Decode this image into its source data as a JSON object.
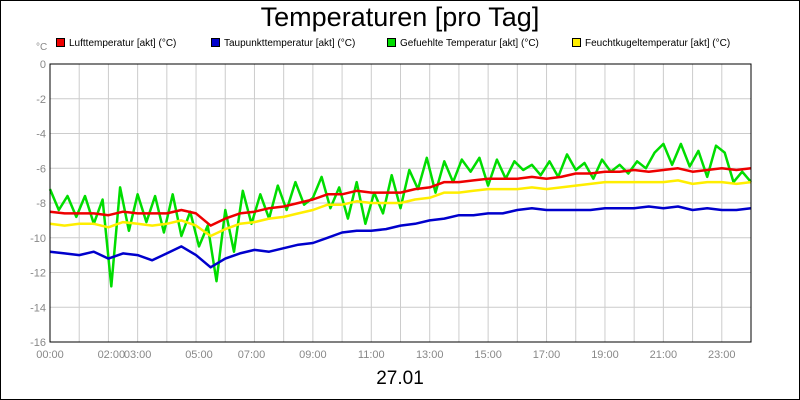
{
  "page": {
    "title": "Temperaturen [pro Tag]",
    "date": "27.01"
  },
  "chart_data": {
    "type": "line",
    "title": "Temperaturen [pro Tag]",
    "xlabel": "27.01",
    "ylabel": "°C",
    "ylim": [
      -16,
      0
    ],
    "xlim": [
      0,
      24
    ],
    "yticks": [
      0,
      -2,
      -4,
      -6,
      -8,
      -10,
      -12,
      -14,
      -16
    ],
    "xticks": [
      {
        "h": 0,
        "label": "00:00"
      },
      {
        "h": 2.1,
        "label": "02:00"
      },
      {
        "h": 3.0,
        "label": "03:00"
      },
      {
        "h": 5.1,
        "label": "05:00"
      },
      {
        "h": 6.9,
        "label": "07:00"
      },
      {
        "h": 9.0,
        "label": "09:00"
      },
      {
        "h": 11.0,
        "label": "11:00"
      },
      {
        "h": 13.0,
        "label": "13:00"
      },
      {
        "h": 15.0,
        "label": "15:00"
      },
      {
        "h": 17.0,
        "label": "17:00"
      },
      {
        "h": 19.0,
        "label": "19:00"
      },
      {
        "h": 21.0,
        "label": "21:00"
      },
      {
        "h": 23.0,
        "label": "23:00"
      }
    ],
    "grid": true,
    "series": [
      {
        "name": "Lufttemperatur [akt] (°C)",
        "color": "#ee0000",
        "x": [
          0,
          0.5,
          1,
          1.5,
          2,
          2.5,
          3,
          3.5,
          4,
          4.5,
          5,
          5.5,
          6,
          6.5,
          7,
          7.5,
          8,
          8.5,
          9,
          9.5,
          10,
          10.5,
          11,
          11.5,
          12,
          12.5,
          13,
          13.5,
          14,
          14.5,
          15,
          15.5,
          16,
          16.5,
          17,
          17.5,
          18,
          18.5,
          19,
          19.5,
          20,
          20.5,
          21,
          21.5,
          22,
          22.5,
          23,
          23.5,
          24
        ],
        "values": [
          -8.5,
          -8.6,
          -8.6,
          -8.6,
          -8.7,
          -8.5,
          -8.6,
          -8.6,
          -8.6,
          -8.4,
          -8.6,
          -9.3,
          -8.9,
          -8.6,
          -8.5,
          -8.3,
          -8.2,
          -8,
          -7.8,
          -7.5,
          -7.5,
          -7.3,
          -7.4,
          -7.4,
          -7.4,
          -7.2,
          -7.1,
          -6.8,
          -6.8,
          -6.7,
          -6.6,
          -6.6,
          -6.6,
          -6.5,
          -6.6,
          -6.5,
          -6.3,
          -6.3,
          -6.2,
          -6.2,
          -6.1,
          -6.2,
          -6.1,
          -6,
          -6.2,
          -6.1,
          -6,
          -6.1,
          -6
        ]
      },
      {
        "name": "Taupunkttemperatur [akt] (°C)",
        "color": "#0000cc",
        "x": [
          0,
          0.5,
          1,
          1.5,
          2,
          2.5,
          3,
          3.5,
          4,
          4.5,
          5,
          5.5,
          6,
          6.5,
          7,
          7.5,
          8,
          8.5,
          9,
          9.5,
          10,
          10.5,
          11,
          11.5,
          12,
          12.5,
          13,
          13.5,
          14,
          14.5,
          15,
          15.5,
          16,
          16.5,
          17,
          17.5,
          18,
          18.5,
          19,
          19.5,
          20,
          20.5,
          21,
          21.5,
          22,
          22.5,
          23,
          23.5,
          24
        ],
        "values": [
          -10.8,
          -10.9,
          -11,
          -10.8,
          -11.2,
          -10.9,
          -11,
          -11.3,
          -10.9,
          -10.5,
          -11,
          -11.7,
          -11.2,
          -10.9,
          -10.7,
          -10.8,
          -10.6,
          -10.4,
          -10.3,
          -10,
          -9.7,
          -9.6,
          -9.6,
          -9.5,
          -9.3,
          -9.2,
          -9,
          -8.9,
          -8.7,
          -8.7,
          -8.6,
          -8.6,
          -8.4,
          -8.3,
          -8.4,
          -8.4,
          -8.4,
          -8.4,
          -8.3,
          -8.3,
          -8.3,
          -8.2,
          -8.3,
          -8.2,
          -8.4,
          -8.3,
          -8.4,
          -8.4,
          -8.3
        ]
      },
      {
        "name": "Gefuehlte Temperatur [akt] (°C)",
        "color": "#00dd00",
        "x": [
          0,
          0.3,
          0.6,
          0.9,
          1.2,
          1.5,
          1.8,
          2.1,
          2.4,
          2.7,
          3,
          3.3,
          3.6,
          3.9,
          4.2,
          4.5,
          4.8,
          5.1,
          5.4,
          5.7,
          6,
          6.3,
          6.6,
          6.9,
          7.2,
          7.5,
          7.8,
          8.1,
          8.4,
          8.7,
          9,
          9.3,
          9.6,
          9.9,
          10.2,
          10.5,
          10.8,
          11.1,
          11.4,
          11.7,
          12,
          12.3,
          12.6,
          12.9,
          13.2,
          13.5,
          13.8,
          14.1,
          14.4,
          14.7,
          15,
          15.3,
          15.6,
          15.9,
          16.2,
          16.5,
          16.8,
          17.1,
          17.4,
          17.7,
          18,
          18.3,
          18.6,
          18.9,
          19.2,
          19.5,
          19.8,
          20.1,
          20.4,
          20.7,
          21,
          21.3,
          21.6,
          21.9,
          22.2,
          22.5,
          22.8,
          23.1,
          23.4,
          23.7,
          24
        ],
        "values": [
          -7.2,
          -8.4,
          -7.6,
          -8.8,
          -7.6,
          -9.2,
          -7.8,
          -12.8,
          -7.1,
          -9.6,
          -7.5,
          -9.1,
          -7.6,
          -9.7,
          -7.5,
          -9.9,
          -8.5,
          -10.5,
          -9.3,
          -12.5,
          -8.4,
          -10.8,
          -7.3,
          -9.2,
          -7.5,
          -8.9,
          -7,
          -8.4,
          -6.8,
          -8.1,
          -7.7,
          -6.5,
          -8.3,
          -7.1,
          -8.9,
          -6.8,
          -9.2,
          -7.4,
          -8.6,
          -6.4,
          -8.3,
          -6.1,
          -7.2,
          -5.4,
          -7.4,
          -5.6,
          -6.8,
          -5.5,
          -6.2,
          -5.4,
          -7,
          -5.5,
          -6.6,
          -5.6,
          -6.1,
          -5.8,
          -6.4,
          -5.6,
          -6.5,
          -5.2,
          -6.1,
          -5.7,
          -6.6,
          -5.5,
          -6.2,
          -5.8,
          -6.3,
          -5.6,
          -6,
          -5.1,
          -4.6,
          -5.8,
          -4.6,
          -5.9,
          -5,
          -6.5,
          -4.7,
          -5.1,
          -6.8,
          -6.2,
          -6.8
        ]
      },
      {
        "name": "Feuchtkugeltemperatur [akt] (°C)",
        "color": "#ffee00",
        "x": [
          0,
          0.5,
          1,
          1.5,
          2,
          2.5,
          3,
          3.5,
          4,
          4.5,
          5,
          5.5,
          6,
          6.5,
          7,
          7.5,
          8,
          8.5,
          9,
          9.5,
          10,
          10.5,
          11,
          11.5,
          12,
          12.5,
          13,
          13.5,
          14,
          14.5,
          15,
          15.5,
          16,
          16.5,
          17,
          17.5,
          18,
          18.5,
          19,
          19.5,
          20,
          20.5,
          21,
          21.5,
          22,
          22.5,
          23,
          23.5,
          24
        ],
        "values": [
          -9.2,
          -9.3,
          -9.2,
          -9.2,
          -9.4,
          -9.1,
          -9.2,
          -9.3,
          -9.2,
          -9,
          -9.3,
          -9.9,
          -9.5,
          -9.2,
          -9.1,
          -8.9,
          -8.8,
          -8.6,
          -8.4,
          -8.1,
          -8.1,
          -7.9,
          -8,
          -8,
          -8,
          -7.8,
          -7.7,
          -7.4,
          -7.4,
          -7.3,
          -7.2,
          -7.2,
          -7.2,
          -7.1,
          -7.2,
          -7.1,
          -7,
          -6.9,
          -6.8,
          -6.8,
          -6.8,
          -6.8,
          -6.8,
          -6.7,
          -6.9,
          -6.8,
          -6.8,
          -6.9,
          -6.8
        ]
      }
    ]
  }
}
